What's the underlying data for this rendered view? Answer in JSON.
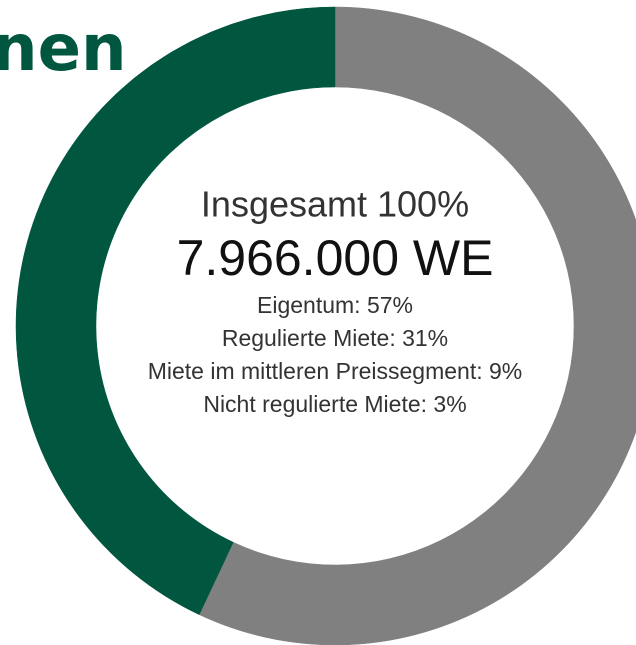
{
  "chart_data": {
    "type": "donut",
    "title": "nen",
    "center_label": "Insgesamt 100%",
    "total_label": "7.966.000 WE",
    "values": [
      57,
      31,
      9,
      3
    ],
    "value_labels": [
      "Eigentum: 57%",
      "Regulierte Miete: 31%",
      "Miete im mittleren Preissegment: 9%",
      "Nicht regulierte Miete: 3%"
    ],
    "colors": [
      "#808080",
      "#00563f",
      "#00563f",
      "#00563f"
    ]
  }
}
